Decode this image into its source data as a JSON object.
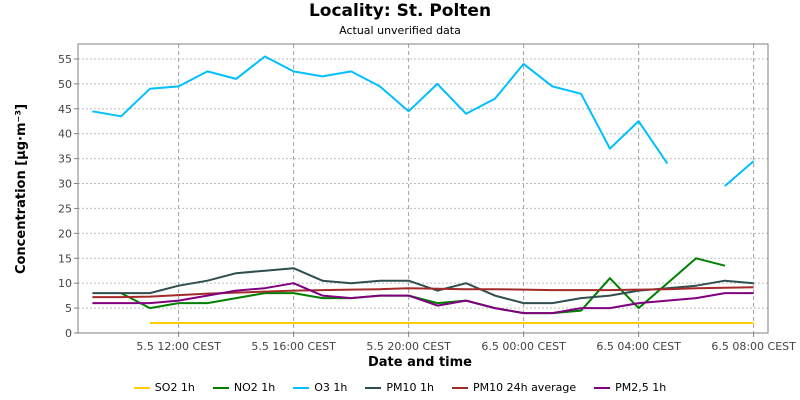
{
  "chart_data": {
    "type": "line",
    "title": "Locality: St. Polten",
    "subtitle": "Actual unverified data",
    "xlabel": "Date and time",
    "ylabel": "Concentration [µg·m⁻³]",
    "ylim": [
      0,
      58
    ],
    "yticks": [
      0,
      5,
      10,
      15,
      20,
      25,
      30,
      35,
      40,
      45,
      50,
      55
    ],
    "grid": true,
    "legend_position": "bottom",
    "x": [
      "5.5 09:00",
      "5.5 10:00",
      "5.5 11:00",
      "5.5 12:00",
      "5.5 13:00",
      "5.5 14:00",
      "5.5 15:00",
      "5.5 16:00",
      "5.5 17:00",
      "5.5 18:00",
      "5.5 19:00",
      "5.5 20:00",
      "5.5 21:00",
      "5.5 22:00",
      "5.5 23:00",
      "6.5 00:00",
      "6.5 01:00",
      "6.5 02:00",
      "6.5 03:00",
      "6.5 04:00",
      "6.5 05:00",
      "6.5 06:00",
      "6.5 07:00",
      "6.5 08:00"
    ],
    "xlim": [
      "5.5 08:30",
      "6.5 08:30"
    ],
    "xticks": [
      {
        "at": "5.5 12:00",
        "label": "5.5 12:00 CEST"
      },
      {
        "at": "5.5 16:00",
        "label": "5.5 16:00 CEST"
      },
      {
        "at": "5.5 20:00",
        "label": "5.5 20:00 CEST"
      },
      {
        "at": "6.5 00:00",
        "label": "6.5 00:00 CEST"
      },
      {
        "at": "6.5 04:00",
        "label": "6.5 04:00 CEST"
      },
      {
        "at": "6.5 08:00",
        "label": "6.5 08:00 CEST"
      }
    ],
    "series": [
      {
        "name": "SO2 1h",
        "color": "#ffcc00",
        "values": [
          null,
          null,
          2,
          2,
          2,
          2,
          2,
          2,
          2,
          2,
          2,
          2,
          2,
          2,
          2,
          2,
          2,
          2,
          2,
          2,
          2,
          2,
          2,
          2
        ]
      },
      {
        "name": "NO2 1h",
        "color": "#008000",
        "values": [
          null,
          8,
          5,
          6,
          6,
          7,
          8,
          8,
          7,
          7,
          7.5,
          7.5,
          6,
          6.5,
          5,
          4,
          4,
          4.5,
          11,
          5,
          10,
          15,
          13.5,
          null
        ]
      },
      {
        "name": "O3 1h",
        "color": "#00bfff",
        "values": [
          44.5,
          43.5,
          49,
          49.5,
          52.5,
          51,
          55.5,
          52.5,
          51.5,
          52.5,
          49.5,
          44.5,
          50,
          44,
          47,
          54,
          49.5,
          48,
          37,
          42.5,
          34,
          null,
          29.5,
          34.5
        ]
      },
      {
        "name": "PM10 1h",
        "color": "#2f4f4f",
        "values": [
          8,
          8,
          8,
          9.5,
          10.5,
          12,
          12.5,
          13,
          10.5,
          10,
          10.5,
          10.5,
          8.5,
          10,
          7.5,
          6,
          6,
          7,
          7.5,
          8.5,
          9,
          9.5,
          10.5,
          10
        ]
      },
      {
        "name": "PM10 24h average",
        "color": "#a52a2a",
        "values": [
          7.2,
          7.2,
          7.3,
          7.6,
          7.9,
          8.1,
          8.3,
          8.5,
          8.6,
          8.7,
          8.8,
          9,
          8.9,
          8.8,
          8.8,
          8.7,
          8.6,
          8.6,
          8.6,
          8.7,
          8.8,
          9,
          9.1,
          9.2
        ]
      },
      {
        "name": "PM2,5 1h",
        "color": "#800080",
        "values": [
          6,
          6,
          6,
          6.5,
          7.5,
          8.5,
          9,
          10,
          7.5,
          7,
          7.5,
          7.5,
          5.5,
          6.5,
          5,
          4,
          4,
          5,
          5,
          6,
          6.5,
          7,
          8,
          8
        ]
      }
    ]
  }
}
